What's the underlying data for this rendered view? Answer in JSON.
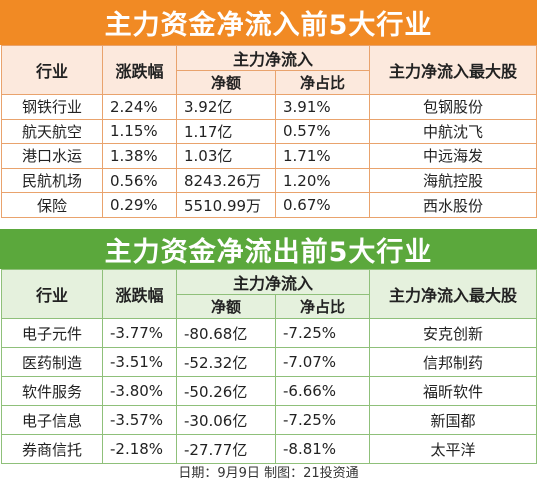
{
  "inflow": {
    "title": "主力资金净流入前5大行业",
    "header": {
      "industry": "行业",
      "change": "涨跌幅",
      "main_flow": "主力净流入",
      "amount": "净额",
      "ratio": "净占比",
      "top_stock": "主力净流入最大股"
    },
    "rows": [
      {
        "industry": "钢铁行业",
        "change": "2.24%",
        "amount": "3.92亿",
        "ratio": "3.91%",
        "stock": "包钢股份"
      },
      {
        "industry": "航天航空",
        "change": "1.15%",
        "amount": "1.17亿",
        "ratio": "0.57%",
        "stock": "中航沈飞"
      },
      {
        "industry": "港口水运",
        "change": "1.38%",
        "amount": "1.03亿",
        "ratio": "1.71%",
        "stock": "中远海发"
      },
      {
        "industry": "民航机场",
        "change": "0.56%",
        "amount": "8243.26万",
        "ratio": "1.20%",
        "stock": "海航控股"
      },
      {
        "industry": "保险",
        "change": "0.29%",
        "amount": "5510.99万",
        "ratio": "0.67%",
        "stock": "西水股份"
      }
    ]
  },
  "outflow": {
    "title": "主力资金净流出前5大行业",
    "header": {
      "industry": "行业",
      "change": "涨跌幅",
      "main_flow": "主力净流入",
      "amount": "净额",
      "ratio": "净占比",
      "top_stock": "主力净流入最大股"
    },
    "rows": [
      {
        "industry": "电子元件",
        "change": "-3.77%",
        "amount": "-80.68亿",
        "ratio": "-7.25%",
        "stock": "安克创新"
      },
      {
        "industry": "医药制造",
        "change": "-3.51%",
        "amount": "-52.32亿",
        "ratio": "-7.07%",
        "stock": "信邦制药"
      },
      {
        "industry": "软件服务",
        "change": "-3.80%",
        "amount": "-50.26亿",
        "ratio": "-6.66%",
        "stock": "福昕软件"
      },
      {
        "industry": "电子信息",
        "change": "-3.57%",
        "amount": "-30.06亿",
        "ratio": "-7.25%",
        "stock": "新国都"
      },
      {
        "industry": "券商信托",
        "change": "-2.18%",
        "amount": "-27.77亿",
        "ratio": "-8.81%",
        "stock": "太平洋"
      }
    ]
  },
  "footer": "日期：9月9日 制图：21投资通"
}
